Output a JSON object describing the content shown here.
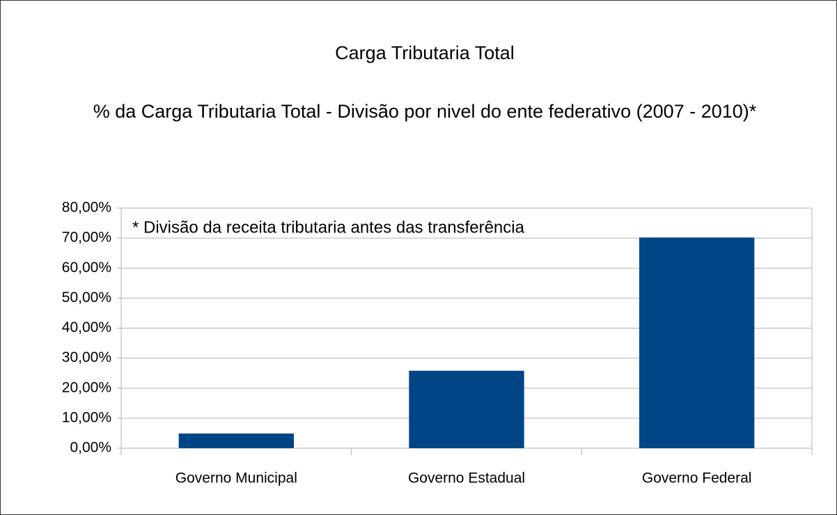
{
  "chart_data": {
    "type": "bar",
    "title": "Carga Tributaria Total",
    "subtitle": "% da Carga Tributaria Total - Divisão por nivel do ente federativo (2007 - 2010)*",
    "annotation": "* Divisão da receita tributaria antes das transferência",
    "categories": [
      "Governo Municipal",
      "Governo Estadual",
      "Governo Federal"
    ],
    "values": [
      4.9,
      25.8,
      70.2
    ],
    "color": "#004586",
    "ylim": [
      0,
      80
    ],
    "yticks": [
      {
        "value": 0,
        "label": "0,00%"
      },
      {
        "value": 10,
        "label": "10,00%"
      },
      {
        "value": 20,
        "label": "20,00%"
      },
      {
        "value": 30,
        "label": "30,00%"
      },
      {
        "value": 40,
        "label": "40,00%"
      },
      {
        "value": 50,
        "label": "50,00%"
      },
      {
        "value": 60,
        "label": "60,00%"
      },
      {
        "value": 70,
        "label": "70,00%"
      },
      {
        "value": 80,
        "label": "80,00%"
      }
    ],
    "grid": true
  }
}
